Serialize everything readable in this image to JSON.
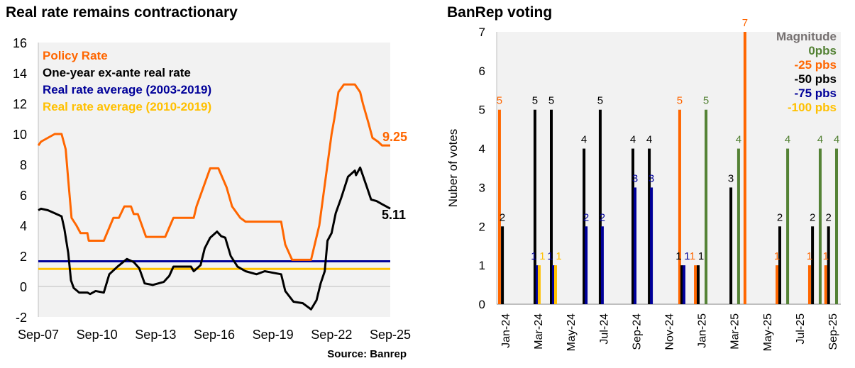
{
  "chart_data": [
    {
      "type": "line",
      "title": "Real rate remains contractionary",
      "source": "Source: Banrep",
      "ylim": [
        -2,
        16
      ],
      "yticks": [
        -2,
        0,
        2,
        4,
        6,
        8,
        10,
        12,
        14,
        16
      ],
      "xlim": [
        2007.67,
        2025.67
      ],
      "xticks": [
        {
          "label": "Sep-07",
          "x": 2007.67
        },
        {
          "label": "Sep-10",
          "x": 2010.67
        },
        {
          "label": "Sep-13",
          "x": 2013.67
        },
        {
          "label": "Sep-16",
          "x": 2016.67
        },
        {
          "label": "Sep-19",
          "x": 2019.67
        },
        {
          "label": "Sep-22",
          "x": 2022.67
        },
        {
          "label": "Sep-25",
          "x": 2025.67
        }
      ],
      "series": [
        {
          "name": "Policy Rate",
          "color": "#FF6600",
          "end_label": "9.25",
          "points": [
            [
              2007.67,
              9.25
            ],
            [
              2007.81,
              9.5
            ],
            [
              2008.16,
              9.75
            ],
            [
              2008.51,
              10
            ],
            [
              2008.86,
              10
            ],
            [
              2009.07,
              9
            ],
            [
              2009.2,
              7
            ],
            [
              2009.37,
              4.5
            ],
            [
              2009.62,
              4
            ],
            [
              2009.83,
              3.5
            ],
            [
              2010.18,
              3.5
            ],
            [
              2010.25,
              3
            ],
            [
              2011.02,
              3
            ],
            [
              2011.51,
              4.5
            ],
            [
              2011.79,
              4.5
            ],
            [
              2012.07,
              5.25
            ],
            [
              2012.41,
              5.25
            ],
            [
              2012.55,
              4.75
            ],
            [
              2012.76,
              4.75
            ],
            [
              2013.18,
              3.25
            ],
            [
              2014.16,
              3.25
            ],
            [
              2014.58,
              4.5
            ],
            [
              2015.62,
              4.5
            ],
            [
              2015.76,
              5.25
            ],
            [
              2016.11,
              6.5
            ],
            [
              2016.46,
              7.75
            ],
            [
              2016.88,
              7.75
            ],
            [
              2017.3,
              6.5
            ],
            [
              2017.58,
              5.25
            ],
            [
              2018.0,
              4.5
            ],
            [
              2018.27,
              4.25
            ],
            [
              2020.09,
              4.25
            ],
            [
              2020.3,
              2.75
            ],
            [
              2020.65,
              1.75
            ],
            [
              2021.62,
              1.75
            ],
            [
              2021.76,
              2.5
            ],
            [
              2022.04,
              4
            ],
            [
              2022.25,
              6
            ],
            [
              2022.46,
              8
            ],
            [
              2022.67,
              10
            ],
            [
              2022.81,
              11
            ],
            [
              2023.02,
              12.75
            ],
            [
              2023.3,
              13.25
            ],
            [
              2023.86,
              13.25
            ],
            [
              2024.13,
              12.75
            ],
            [
              2024.27,
              12
            ],
            [
              2024.55,
              10.75
            ],
            [
              2024.76,
              9.75
            ],
            [
              2025.04,
              9.5
            ],
            [
              2025.25,
              9.25
            ],
            [
              2025.67,
              9.25
            ]
          ]
        },
        {
          "name": "One-year ex-ante real rate",
          "color": "#000000",
          "end_label": "5.11",
          "points": [
            [
              2007.67,
              5.0
            ],
            [
              2007.81,
              5.1
            ],
            [
              2008.16,
              5.0
            ],
            [
              2008.51,
              4.8
            ],
            [
              2008.86,
              4.6
            ],
            [
              2009.0,
              3.8
            ],
            [
              2009.2,
              2.2
            ],
            [
              2009.34,
              0.4
            ],
            [
              2009.48,
              -0.1
            ],
            [
              2009.76,
              -0.4
            ],
            [
              2010.18,
              -0.4
            ],
            [
              2010.32,
              -0.5
            ],
            [
              2010.6,
              -0.3
            ],
            [
              2011.02,
              -0.4
            ],
            [
              2011.3,
              0.8
            ],
            [
              2011.72,
              1.3
            ],
            [
              2012.2,
              1.8
            ],
            [
              2012.55,
              1.6
            ],
            [
              2012.83,
              1.2
            ],
            [
              2013.11,
              0.2
            ],
            [
              2013.53,
              0.1
            ],
            [
              2014.09,
              0.3
            ],
            [
              2014.37,
              0.7
            ],
            [
              2014.58,
              1.3
            ],
            [
              2015.48,
              1.3
            ],
            [
              2015.62,
              1.0
            ],
            [
              2015.97,
              1.4
            ],
            [
              2016.18,
              2.5
            ],
            [
              2016.46,
              3.2
            ],
            [
              2016.81,
              3.6
            ],
            [
              2017.02,
              3.3
            ],
            [
              2017.23,
              3.2
            ],
            [
              2017.51,
              2.0
            ],
            [
              2017.86,
              1.3
            ],
            [
              2018.27,
              1.0
            ],
            [
              2018.83,
              0.8
            ],
            [
              2019.25,
              1.0
            ],
            [
              2020.09,
              0.8
            ],
            [
              2020.3,
              -0.3
            ],
            [
              2020.72,
              -1.0
            ],
            [
              2021.2,
              -1.1
            ],
            [
              2021.62,
              -1.5
            ],
            [
              2021.9,
              -0.9
            ],
            [
              2022.11,
              0.2
            ],
            [
              2022.32,
              1.0
            ],
            [
              2022.46,
              3.0
            ],
            [
              2022.67,
              3.5
            ],
            [
              2022.88,
              4.8
            ],
            [
              2023.16,
              5.8
            ],
            [
              2023.51,
              7.2
            ],
            [
              2023.86,
              7.6
            ],
            [
              2023.92,
              7.3
            ],
            [
              2024.13,
              7.8
            ],
            [
              2024.48,
              6.5
            ],
            [
              2024.69,
              5.7
            ],
            [
              2024.97,
              5.6
            ],
            [
              2025.25,
              5.4
            ],
            [
              2025.67,
              5.11
            ]
          ]
        },
        {
          "name": "Real rate average (2003-2019)",
          "color": "#000099",
          "value": 1.65
        },
        {
          "name": "Real rate average (2010-2019)",
          "color": "#FFC000",
          "value": 1.15
        }
      ]
    },
    {
      "type": "bar",
      "title": "BanRep voting",
      "ylabel": "Nuber of votes",
      "ylim": [
        0,
        7
      ],
      "yticks": [
        0,
        1,
        2,
        3,
        4,
        5,
        6,
        7
      ],
      "xticks": [
        "Jan-24",
        "Mar-24",
        "May-24",
        "Jul-24",
        "Sep-24",
        "Nov-24",
        "Jan-25",
        "Mar-25",
        "May-25",
        "Jul-25",
        "Sep-25"
      ],
      "x_unit": "months since Jan-24",
      "legend_title": "Magnitude",
      "series": [
        {
          "key": "0",
          "name": "0pbs",
          "color": "#548235"
        },
        {
          "key": "25",
          "name": "-25 pbs",
          "color": "#FF6600"
        },
        {
          "key": "50",
          "name": "-50 pbs",
          "color": "#000000"
        },
        {
          "key": "75",
          "name": "-75 pbs",
          "color": "#000099"
        },
        {
          "key": "100",
          "name": "-100 pbs",
          "color": "#FFC000"
        }
      ],
      "bars": [
        {
          "s": "25",
          "t": -0.35,
          "v": 5
        },
        {
          "s": "50",
          "t": -0.17,
          "v": 2
        },
        {
          "s": "50",
          "t": 1.82,
          "v": 5
        },
        {
          "s": "75",
          "t": 1.95,
          "v": 1
        },
        {
          "s": "100",
          "t": 2.08,
          "v": 1
        },
        {
          "s": "50",
          "t": 2.82,
          "v": 5
        },
        {
          "s": "75",
          "t": 2.95,
          "v": 1
        },
        {
          "s": "100",
          "t": 3.08,
          "v": 1
        },
        {
          "s": "50",
          "t": 4.82,
          "v": 4
        },
        {
          "s": "75",
          "t": 4.95,
          "v": 2
        },
        {
          "s": "50",
          "t": 5.81,
          "v": 5
        },
        {
          "s": "75",
          "t": 5.94,
          "v": 2
        },
        {
          "s": "50",
          "t": 7.81,
          "v": 4
        },
        {
          "s": "75",
          "t": 7.94,
          "v": 3
        },
        {
          "s": "50",
          "t": 8.81,
          "v": 4
        },
        {
          "s": "75",
          "t": 8.94,
          "v": 3
        },
        {
          "s": "25",
          "t": 10.67,
          "v": 5
        },
        {
          "s": "50",
          "t": 10.8,
          "v": 1
        },
        {
          "s": "75",
          "t": 10.93,
          "v": 1
        },
        {
          "s": "25",
          "t": 11.63,
          "v": 1
        },
        {
          "s": "50",
          "t": 11.8,
          "v": 1
        },
        {
          "s": "0",
          "t": 12.28,
          "v": 5
        },
        {
          "s": "50",
          "t": 13.8,
          "v": 3
        },
        {
          "s": "0",
          "t": 14.27,
          "v": 4
        },
        {
          "s": "25",
          "t": 14.66,
          "v": 7
        },
        {
          "s": "25",
          "t": 16.62,
          "v": 1
        },
        {
          "s": "50",
          "t": 16.79,
          "v": 2
        },
        {
          "s": "0",
          "t": 17.27,
          "v": 4
        },
        {
          "s": "25",
          "t": 18.61,
          "v": 1
        },
        {
          "s": "50",
          "t": 18.79,
          "v": 2
        },
        {
          "s": "0",
          "t": 19.26,
          "v": 4
        },
        {
          "s": "25",
          "t": 19.6,
          "v": 1
        },
        {
          "s": "50",
          "t": 19.77,
          "v": 2
        },
        {
          "s": "0",
          "t": 20.26,
          "v": 4
        }
      ]
    }
  ]
}
